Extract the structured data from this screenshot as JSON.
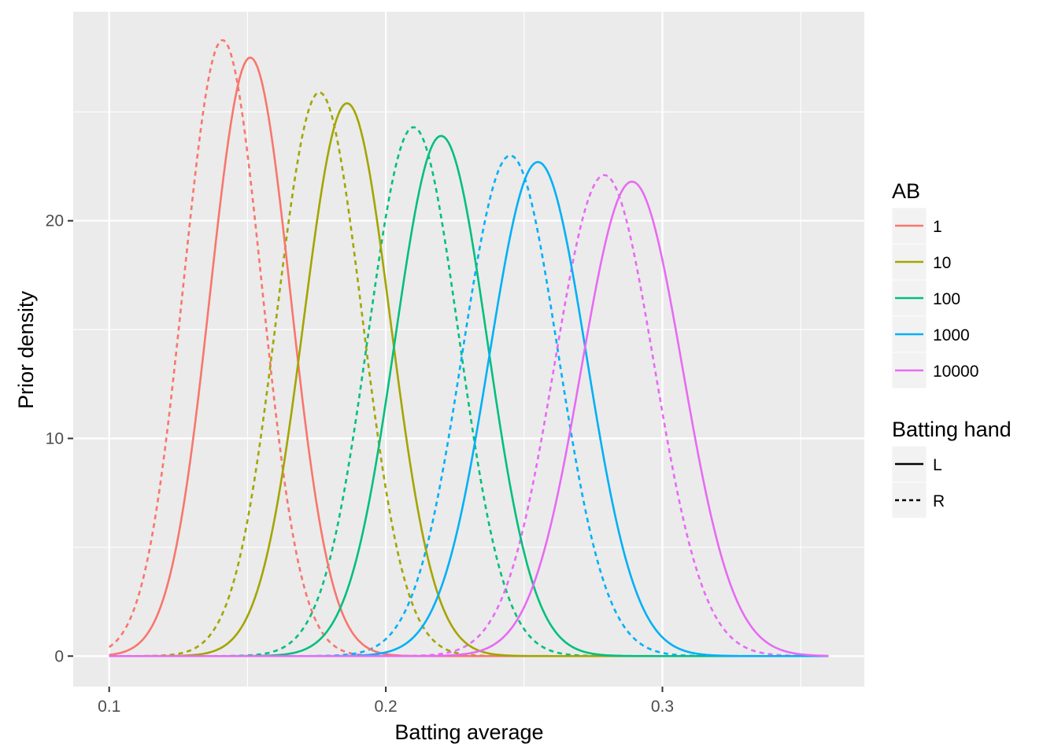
{
  "chart_data": {
    "type": "line",
    "xlabel": "Batting average",
    "ylabel": "Prior density",
    "xlim": [
      0.087,
      0.373
    ],
    "ylim": [
      -1.4,
      29.6
    ],
    "x_ticks": [
      0.1,
      0.2,
      0.3
    ],
    "x_tick_labels": [
      "0.1",
      "0.2",
      "0.3"
    ],
    "y_ticks": [
      0,
      10,
      20
    ],
    "y_tick_labels": [
      "0",
      "10",
      "20"
    ],
    "x_range": [
      0.1,
      0.36
    ],
    "grid": true,
    "background": "#EBEBEB",
    "legend_placement": "right",
    "color_legend": {
      "title": "AB",
      "entries": [
        {
          "label": "1",
          "color": "#F8766D"
        },
        {
          "label": "10",
          "color": "#A3A500"
        },
        {
          "label": "100",
          "color": "#00BF7D"
        },
        {
          "label": "1000",
          "color": "#00B0F6"
        },
        {
          "label": "10000",
          "color": "#E76BF3"
        }
      ]
    },
    "linetype_legend": {
      "title": "Batting hand",
      "entries": [
        {
          "label": "L",
          "dash": "solid"
        },
        {
          "label": "R",
          "dash": "dashed"
        }
      ]
    },
    "series": [
      {
        "AB": "1",
        "hand": "L",
        "color": "#F8766D",
        "dash": "solid",
        "peak_x": 0.151,
        "peak_y": 27.5,
        "sd": 0.0145
      },
      {
        "AB": "1",
        "hand": "R",
        "color": "#F8766D",
        "dash": "dashed",
        "peak_x": 0.141,
        "peak_y": 28.3,
        "sd": 0.0141
      },
      {
        "AB": "10",
        "hand": "L",
        "color": "#A3A500",
        "dash": "solid",
        "peak_x": 0.186,
        "peak_y": 25.4,
        "sd": 0.0157
      },
      {
        "AB": "10",
        "hand": "R",
        "color": "#A3A500",
        "dash": "dashed",
        "peak_x": 0.176,
        "peak_y": 25.9,
        "sd": 0.0154
      },
      {
        "AB": "100",
        "hand": "L",
        "color": "#00BF7D",
        "dash": "solid",
        "peak_x": 0.22,
        "peak_y": 23.9,
        "sd": 0.0167
      },
      {
        "AB": "100",
        "hand": "R",
        "color": "#00BF7D",
        "dash": "dashed",
        "peak_x": 0.21,
        "peak_y": 24.3,
        "sd": 0.0164
      },
      {
        "AB": "1000",
        "hand": "L",
        "color": "#00B0F6",
        "dash": "solid",
        "peak_x": 0.255,
        "peak_y": 22.7,
        "sd": 0.0176
      },
      {
        "AB": "1000",
        "hand": "R",
        "color": "#00B0F6",
        "dash": "dashed",
        "peak_x": 0.245,
        "peak_y": 23.0,
        "sd": 0.0173
      },
      {
        "AB": "10000",
        "hand": "L",
        "color": "#E76BF3",
        "dash": "solid",
        "peak_x": 0.289,
        "peak_y": 21.8,
        "sd": 0.0183
      },
      {
        "AB": "10000",
        "hand": "R",
        "color": "#E76BF3",
        "dash": "dashed",
        "peak_x": 0.279,
        "peak_y": 22.1,
        "sd": 0.018
      }
    ]
  }
}
